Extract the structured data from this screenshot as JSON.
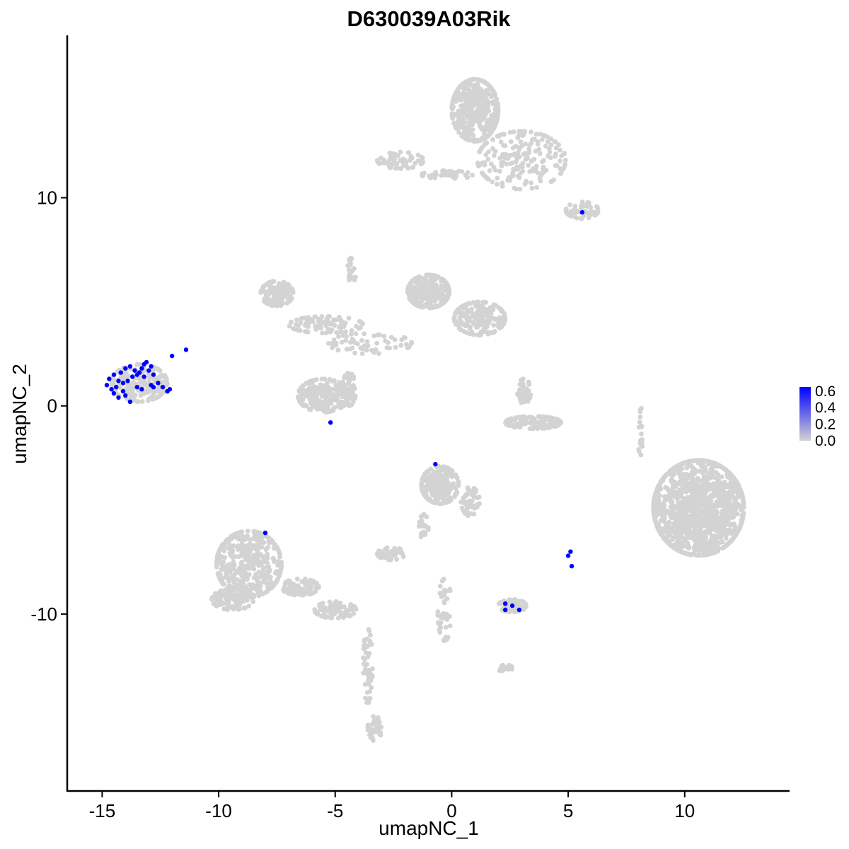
{
  "chart_data": {
    "type": "scatter",
    "title": "D630039A03Rik",
    "xlabel": "umapNC_1",
    "ylabel": "umapNC_2",
    "xlim": [
      -16.5,
      14.5
    ],
    "ylim": [
      -18.5,
      17.8
    ],
    "x_ticks": [
      -15,
      -10,
      -5,
      0,
      5,
      10
    ],
    "y_ticks": [
      -10,
      0,
      10
    ],
    "grid": false,
    "legend": {
      "placement": "right",
      "type": "colorbar",
      "ticks": [
        "0.6",
        "0.4",
        "0.2",
        "0.0"
      ],
      "range": [
        0,
        0.65
      ],
      "low_color": "#d3d3d3",
      "high_color": "#0000ff"
    },
    "background_color": "#d3d3d3",
    "expressed_color": "#0000ff",
    "clusters": [
      {
        "cx": 1.0,
        "cy": 14.2,
        "rx": 1.0,
        "ry": 1.5,
        "n": 420
      },
      {
        "cx": 3.0,
        "cy": 11.8,
        "rx": 1.9,
        "ry": 1.4,
        "n": 200
      },
      {
        "cx": 5.6,
        "cy": 9.4,
        "rx": 0.7,
        "ry": 0.4,
        "n": 60
      },
      {
        "cx": -2.2,
        "cy": 11.8,
        "rx": 1.0,
        "ry": 0.4,
        "n": 70
      },
      {
        "cx": -0.2,
        "cy": 11.1,
        "rx": 1.1,
        "ry": 0.2,
        "n": 40
      },
      {
        "cx": -7.5,
        "cy": 5.4,
        "rx": 0.7,
        "ry": 0.6,
        "n": 130
      },
      {
        "cx": -5.4,
        "cy": 3.9,
        "rx": 1.6,
        "ry": 0.4,
        "n": 90
      },
      {
        "cx": -4.3,
        "cy": 6.5,
        "rx": 0.2,
        "ry": 0.6,
        "n": 25
      },
      {
        "cx": -1.0,
        "cy": 5.5,
        "rx": 0.9,
        "ry": 0.8,
        "n": 260
      },
      {
        "cx": 1.2,
        "cy": 4.2,
        "rx": 1.1,
        "ry": 0.8,
        "n": 200
      },
      {
        "cx": -3.5,
        "cy": 3.0,
        "rx": 1.8,
        "ry": 0.5,
        "n": 60
      },
      {
        "cx": -5.5,
        "cy": 0.5,
        "rx": 1.1,
        "ry": 0.8,
        "n": 220
      },
      {
        "cx": -4.4,
        "cy": 0.8,
        "rx": 0.3,
        "ry": 0.8,
        "n": 60
      },
      {
        "cx": -13.4,
        "cy": 1.1,
        "rx": 1.2,
        "ry": 0.9,
        "n": 200
      },
      {
        "cx": 3.5,
        "cy": -0.8,
        "rx": 1.2,
        "ry": 0.3,
        "n": 130
      },
      {
        "cx": 3.1,
        "cy": 0.7,
        "rx": 0.3,
        "ry": 0.6,
        "n": 40
      },
      {
        "cx": -0.5,
        "cy": -3.8,
        "rx": 0.8,
        "ry": 0.9,
        "n": 240
      },
      {
        "cx": 0.8,
        "cy": -4.6,
        "rx": 0.4,
        "ry": 0.7,
        "n": 50
      },
      {
        "cx": -1.2,
        "cy": -5.8,
        "rx": 0.2,
        "ry": 0.6,
        "n": 25
      },
      {
        "cx": -2.6,
        "cy": -7.1,
        "rx": 0.6,
        "ry": 0.3,
        "n": 50
      },
      {
        "cx": -8.7,
        "cy": -7.6,
        "rx": 1.4,
        "ry": 1.6,
        "n": 450
      },
      {
        "cx": -9.4,
        "cy": -9.3,
        "rx": 0.9,
        "ry": 0.5,
        "n": 120
      },
      {
        "cx": -6.5,
        "cy": -8.7,
        "rx": 0.8,
        "ry": 0.4,
        "n": 80
      },
      {
        "cx": -5.0,
        "cy": -9.8,
        "rx": 0.9,
        "ry": 0.4,
        "n": 90
      },
      {
        "cx": -3.6,
        "cy": -12.5,
        "rx": 0.2,
        "ry": 1.8,
        "n": 50
      },
      {
        "cx": -3.3,
        "cy": -15.5,
        "rx": 0.3,
        "ry": 0.6,
        "n": 40
      },
      {
        "cx": -0.3,
        "cy": -9.8,
        "rx": 0.3,
        "ry": 1.5,
        "n": 45
      },
      {
        "cx": 2.6,
        "cy": -9.6,
        "rx": 0.6,
        "ry": 0.3,
        "n": 80
      },
      {
        "cx": 2.3,
        "cy": -12.6,
        "rx": 0.3,
        "ry": 0.2,
        "n": 20
      },
      {
        "cx": 10.6,
        "cy": -4.9,
        "rx": 1.95,
        "ry": 2.3,
        "n": 1400
      },
      {
        "cx": 8.1,
        "cy": -1.2,
        "rx": 0.1,
        "ry": 1.4,
        "n": 20
      }
    ],
    "expressed_points": [
      [
        -14.7,
        1.3
      ],
      [
        -14.5,
        1.5
      ],
      [
        -14.3,
        1.2
      ],
      [
        -14.2,
        1.6
      ],
      [
        -14.0,
        1.8
      ],
      [
        -13.8,
        1.9
      ],
      [
        -13.6,
        1.7
      ],
      [
        -13.5,
        1.5
      ],
      [
        -13.3,
        1.8
      ],
      [
        -13.2,
        2.0
      ],
      [
        -13.1,
        2.1
      ],
      [
        -13.0,
        1.7
      ],
      [
        -12.9,
        1.9
      ],
      [
        -12.8,
        1.5
      ],
      [
        -14.4,
        0.9
      ],
      [
        -14.1,
        0.7
      ],
      [
        -13.9,
        1.2
      ],
      [
        -13.7,
        1.4
      ],
      [
        -13.4,
        1.6
      ],
      [
        -13.2,
        1.4
      ],
      [
        -14.6,
        0.8
      ],
      [
        -14.0,
        0.5
      ],
      [
        -13.5,
        0.9
      ],
      [
        -13.3,
        0.8
      ],
      [
        -12.9,
        1.0
      ],
      [
        -12.6,
        1.1
      ],
      [
        -12.4,
        0.9
      ],
      [
        -12.2,
        0.7
      ],
      [
        -12.1,
        0.8
      ],
      [
        -14.8,
        1.0
      ],
      [
        -14.3,
        0.4
      ],
      [
        -13.8,
        0.2
      ],
      [
        -12.8,
        0.9
      ],
      [
        -14.1,
        1.1
      ],
      [
        -14.5,
        0.6
      ],
      [
        -12.0,
        2.4
      ],
      [
        -11.4,
        2.7
      ],
      [
        -5.2,
        -0.8
      ],
      [
        -8.0,
        -6.1
      ],
      [
        5.6,
        9.3
      ],
      [
        -0.7,
        -2.8
      ],
      [
        5.1,
        -7.0
      ],
      [
        5.0,
        -7.2
      ],
      [
        5.15,
        -7.7
      ],
      [
        2.3,
        -9.5
      ],
      [
        2.6,
        -9.6
      ],
      [
        2.9,
        -9.8
      ],
      [
        2.3,
        -9.8
      ]
    ]
  }
}
